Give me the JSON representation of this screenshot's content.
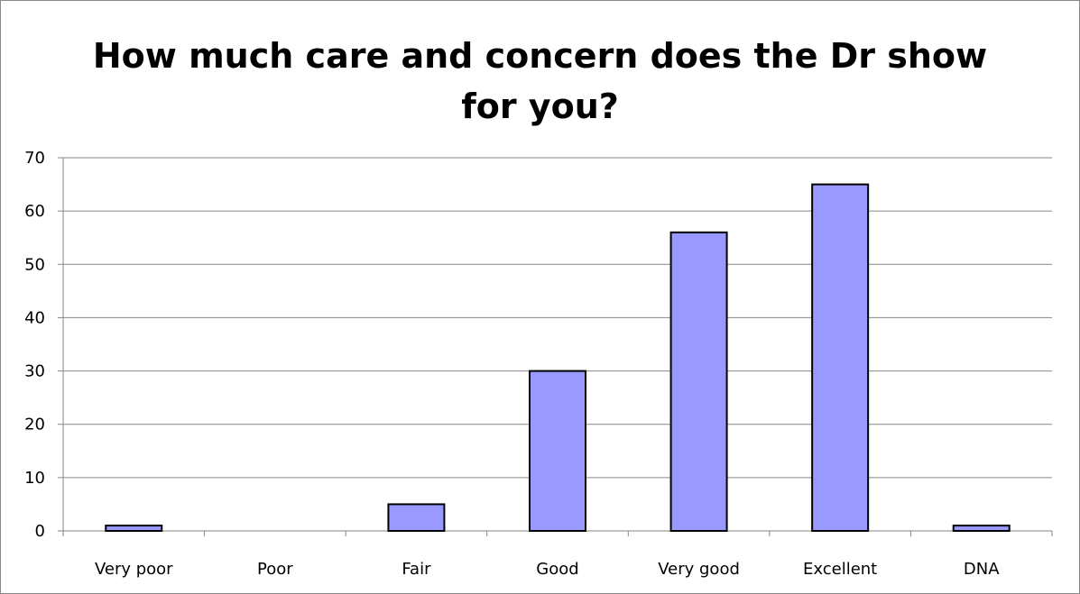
{
  "chart_data": {
    "type": "bar",
    "title_lines": [
      "How much care and concern does the Dr show",
      "for you?"
    ],
    "categories": [
      "Very poor",
      "Poor",
      "Fair",
      "Good",
      "Very good",
      "Excellent",
      "DNA"
    ],
    "values": [
      1,
      0,
      5,
      30,
      56,
      65,
      1
    ],
    "ylim": [
      0,
      70
    ],
    "yticks": [
      0,
      10,
      20,
      30,
      40,
      50,
      60,
      70
    ],
    "xlabel": "",
    "ylabel": "",
    "grid": true,
    "legend": "none",
    "colors": {
      "bar_fill": "#9999FF",
      "bar_stroke": "#000000",
      "grid": "#868686",
      "axis": "#868686"
    }
  }
}
